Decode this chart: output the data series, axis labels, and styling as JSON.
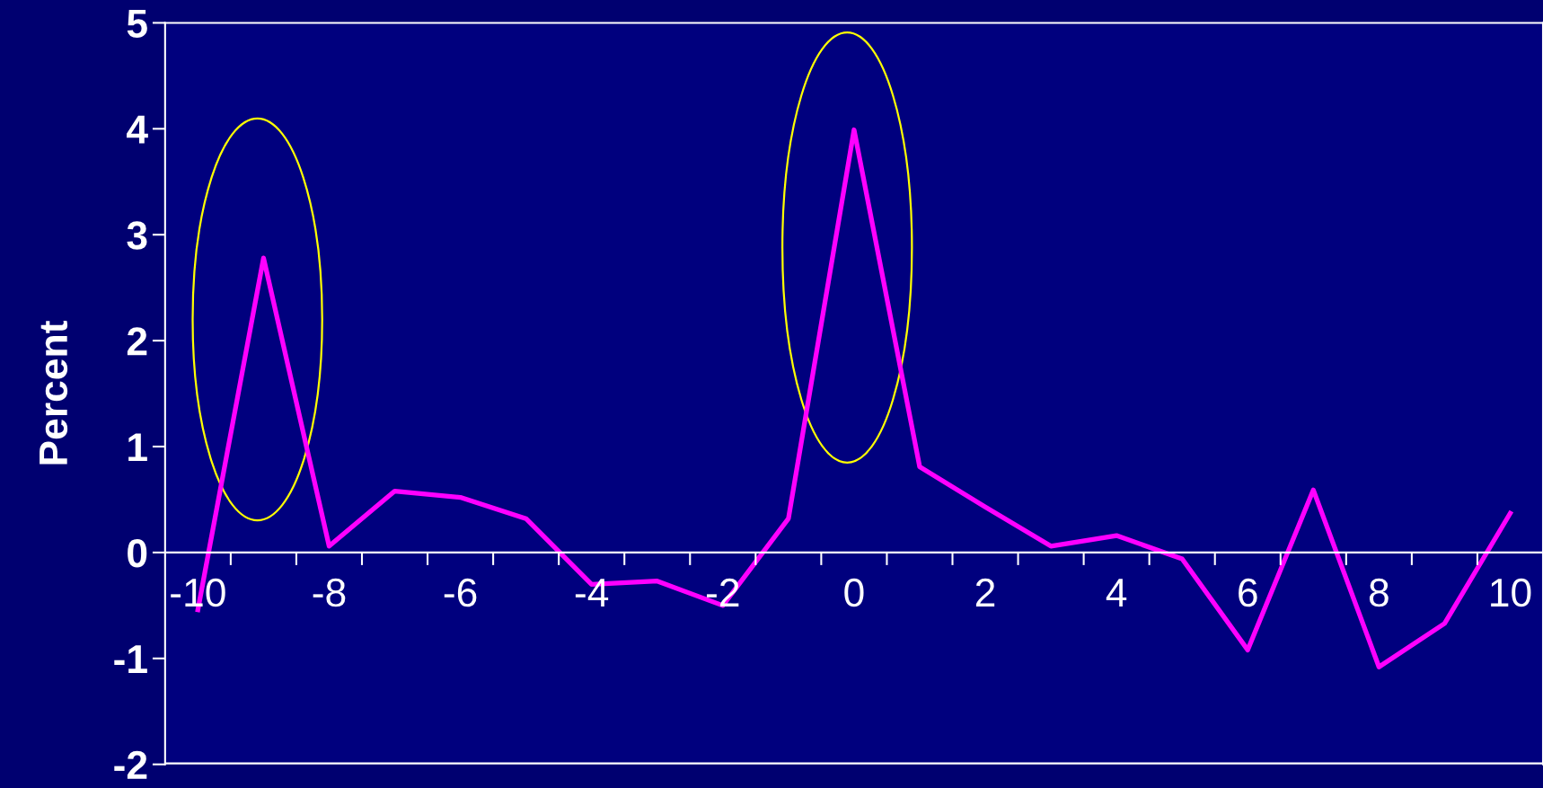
{
  "chart_data": {
    "type": "line",
    "ylabel": "Percent",
    "categories": [
      "-10",
      null,
      "-8",
      null,
      "-6",
      null,
      "-4",
      null,
      "-2",
      null,
      "0",
      null,
      "2",
      null,
      "4",
      null,
      "6",
      null,
      "8",
      null,
      "10"
    ],
    "series": [
      {
        "color": "#ff00ff",
        "values": [
          -0.54,
          2.78,
          0.06,
          0.58,
          0.52,
          0.32,
          -0.3,
          -0.27,
          -0.5,
          0.32,
          3.99,
          0.81,
          0.43,
          0.06,
          0.16,
          -0.06,
          -0.92,
          0.59,
          -1.08,
          -0.67,
          0.37
        ]
      }
    ],
    "ylim": [
      -2,
      5
    ],
    "yticks": [
      -2,
      -1,
      0,
      1,
      2,
      3,
      4,
      5
    ],
    "grid": false,
    "legend": false,
    "marker": "none",
    "line_style": "solid"
  }
}
